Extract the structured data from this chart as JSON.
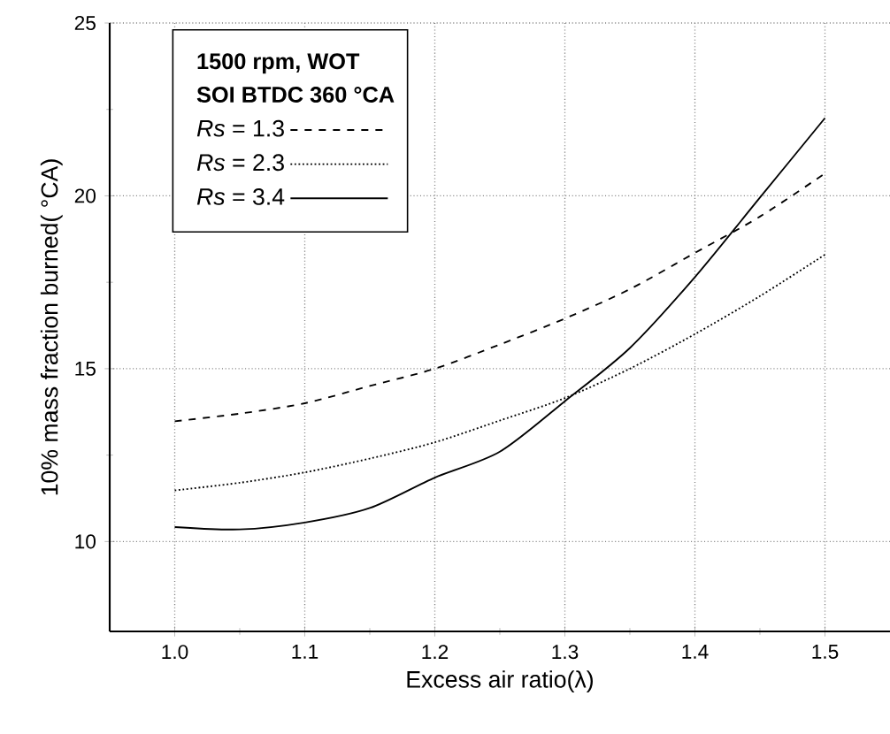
{
  "chart_data": {
    "type": "line",
    "xlabel": "Excess air ratio(λ)",
    "ylabel": "10% mass fraction burned(  °CA)",
    "annotations": [
      "1500 rpm, WOT",
      "SOI BTDC 360 °CA"
    ],
    "legend": "top left",
    "grid": true,
    "xlim": [
      0.95,
      1.55
    ],
    "ylim": [
      7.4,
      25
    ],
    "xticks": [
      {
        "value": 1.0,
        "label": "1.0"
      },
      1.1,
      1.2,
      1.3,
      1.4,
      1.5
    ],
    "yticks": [
      10,
      15,
      20,
      25
    ],
    "x": [
      1.0,
      1.05,
      1.1,
      1.15,
      1.2,
      1.25,
      1.3,
      1.35,
      1.4,
      1.45,
      1.5
    ],
    "series": [
      {
        "name": "*Rs* = 1.3",
        "color": "#000000",
        "line_style": "dashed",
        "values": [
          13.48,
          13.7,
          14.0,
          14.5,
          15.0,
          15.7,
          16.45,
          17.3,
          18.35,
          19.4,
          20.65
        ]
      },
      {
        "name": "*Rs* = 2.3",
        "color": "#000000",
        "line_style": "dotted",
        "values": [
          11.48,
          11.7,
          12.0,
          12.4,
          12.87,
          13.5,
          14.15,
          15.0,
          16.0,
          17.1,
          18.3
        ]
      },
      {
        "name": "*Rs* = 3.4",
        "color": "#000000",
        "line_style": "solid",
        "values": [
          10.42,
          10.35,
          10.55,
          10.97,
          11.85,
          12.6,
          14.06,
          15.6,
          17.65,
          19.95,
          22.25
        ]
      }
    ]
  }
}
